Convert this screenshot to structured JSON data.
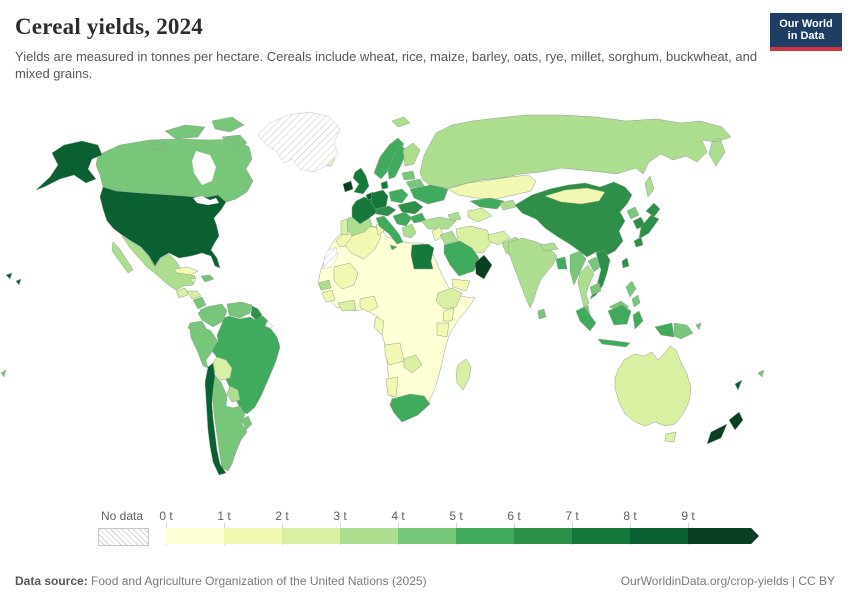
{
  "header": {
    "title": "Cereal yields, 2024",
    "subtitle": "Yields are measured in tonnes per hectare. Cereals include wheat, rice, maize, barley, oats, rye, millet, sorghum, buckwheat, and mixed grains.",
    "logo_line1": "Our World",
    "logo_line2": "in Data"
  },
  "legend": {
    "no_data_label": "No data",
    "tick_labels": [
      "0 t",
      "1 t",
      "2 t",
      "3 t",
      "4 t",
      "5 t",
      "6 t",
      "7 t",
      "8 t",
      "9 t"
    ]
  },
  "colors": {
    "palette": [
      "#ffffd6",
      "#f2f8b1",
      "#d9f0a3",
      "#addd8e",
      "#78c679",
      "#41ab5d",
      "#2d8f48",
      "#16793c",
      "#0a6030",
      "#0a3e20"
    ],
    "country_border": "#8da390",
    "no_data_stroke": "#c4c4c4",
    "ocean": "#ffffff",
    "logo_bg": "#1d3d63",
    "logo_red": "#cf3440",
    "tick": "#c9c9c9"
  },
  "chart_data": {
    "type": "choropleth",
    "title": "Cereal yields, 2024",
    "unit": "tonnes per hectare",
    "legend_bins": [
      "0-1 t",
      "1-2 t",
      "2-3 t",
      "3-4 t",
      "4-5 t",
      "5-6 t",
      "6-7 t",
      "7-8 t",
      "8-9 t",
      "9+ t"
    ],
    "note": "bin value 1 means 0-1 t ... 10 means 9+ t; 0 means no data",
    "countries": {
      "greenland": 0,
      "western-sahara": 0,
      "french-guiana": 0,
      "africa-interior": 1,
      "usa": 9,
      "canada": 5,
      "mexico": 4,
      "guatemala": 3,
      "honduras": 3,
      "nicaragua": 5,
      "costa-rica": 5,
      "panama": 4,
      "cuba": 2,
      "jamaica": 2,
      "hispaniola": 5,
      "colombia": 5,
      "venezuela": 5,
      "guyana": 7,
      "suriname": 6,
      "ecuador": 5,
      "peru": 5,
      "brazil": 6,
      "bolivia": 3,
      "paraguay": 4,
      "uruguay": 5,
      "argentina": 5,
      "chile": 9,
      "iceland": 2,
      "ireland": 10,
      "united-kingdom": 8,
      "portugal": 3,
      "spain": 4,
      "france": 8,
      "belgium-netherlands": 9,
      "germany": 8,
      "denmark": 8,
      "norway": 6,
      "sweden": 6,
      "finland": 4,
      "svalbard": 4,
      "baltic-states": 5,
      "belarus": 5,
      "poland": 6,
      "central-europe": 7,
      "hungary-romania": 7,
      "ukraine": 6,
      "balkans": 6,
      "bulgaria": 6,
      "greece": 4,
      "italy": 6,
      "turkey": 4,
      "russia": 4,
      "kazakhstan": 2,
      "uzbekistan": 6,
      "turkmenistan": 3,
      "kyrgyzstan-tajikistan": 4,
      "caucasus": 4,
      "levant": 2,
      "iraq": 4,
      "iran": 3,
      "saudi-arabia": 6,
      "oman": 10,
      "yemen": 2,
      "afghanistan": 3,
      "pakistan": 4,
      "india": 4,
      "nepal": 4,
      "bangladesh": 6,
      "sri-lanka": 5,
      "myanmar": 5,
      "thailand": 4,
      "laos": 5,
      "vietnam": 7,
      "cambodia": 5,
      "malaysia": 5,
      "indonesia": 6,
      "philippines": 5,
      "china": 7,
      "mongolia": 2,
      "north-korea": 5,
      "south-korea": 7,
      "japan": 7,
      "taiwan": 7,
      "papua-new-guinea": 5,
      "morocco": 2,
      "algeria": 2,
      "tunisia": 2,
      "egypt": 8,
      "mali": 2,
      "senegal": 4,
      "guinea": 2,
      "ghana-ivory-coast": 3,
      "nigeria": 2,
      "cameroon-gabon": 2,
      "ethiopia": 3,
      "kenya": 2,
      "tanzania": 2,
      "angola": 2,
      "zambia": 3,
      "namibia": 2,
      "south-africa": 6,
      "madagascar": 3,
      "australia": 3,
      "tasmania": 3,
      "new-zealand": 10,
      "new-caledonia": 9,
      "pacific-islands": 5
    }
  },
  "footer": {
    "source_label": "Data source:",
    "source_text": " Food and Agriculture Organization of the United Nations (2025)",
    "right_text": "OurWorldinData.org/crop-yields | CC BY"
  }
}
